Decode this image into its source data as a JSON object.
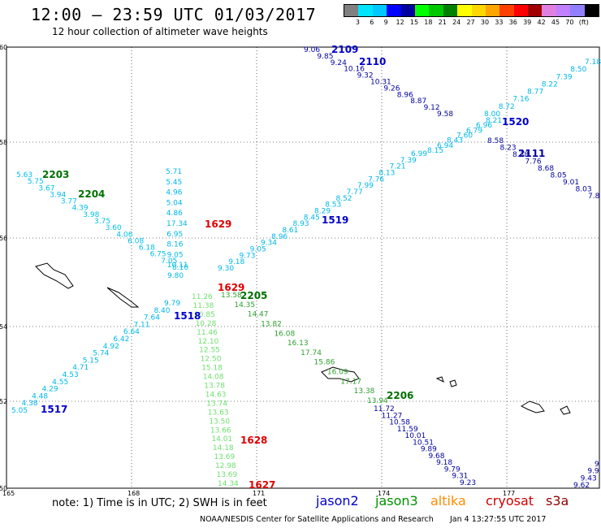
{
  "title": "12:00 – 23:59 UTC 01/03/2017",
  "subtitle": "12 hour collection of altimeter wave heights",
  "legend": {
    "colors": [
      "#808080",
      "#00e5ff",
      "#00c8ff",
      "#0000ff",
      "#0000a0",
      "#00ff00",
      "#00c800",
      "#008000",
      "#ffff00",
      "#ffd700",
      "#ffa500",
      "#ff4000",
      "#ff0000",
      "#a00000",
      "#e080e0",
      "#c080ff",
      "#9080ff",
      "#000000"
    ],
    "labels": [
      "3",
      "6",
      "9",
      "12",
      "15",
      "18",
      "21",
      "24",
      "27",
      "30",
      "33",
      "36",
      "39",
      "42",
      "45",
      "70",
      "(ft)"
    ]
  },
  "map": {
    "lon_ticks": [
      "165",
      "168",
      "171",
      "174",
      "177"
    ],
    "lat_ticks": [
      "50",
      "52",
      "54",
      "56",
      "58",
      "60"
    ]
  },
  "tracks": [
    {
      "id": "2109",
      "color": "#0000cc",
      "label_color": "#0000cc"
    },
    {
      "id": "2110",
      "color": "#0000cc",
      "label_color": "#0000cc"
    },
    {
      "id": "1520",
      "color": "#0000cc",
      "label_color": "#0000cc"
    },
    {
      "id": "2111",
      "color": "#0000a0",
      "label_color": "#0000a0"
    },
    {
      "id": "1519",
      "color": "#0000cc",
      "label_color": "#0000cc"
    },
    {
      "id": "2203",
      "color": "#007000",
      "label_color": "#007000"
    },
    {
      "id": "2204",
      "color": "#007000",
      "label_color": "#007000"
    },
    {
      "id": "1629",
      "color": "#e00000",
      "label_color": "#e00000"
    },
    {
      "id": "2205",
      "color": "#007000",
      "label_color": "#007000"
    },
    {
      "id": "1518",
      "color": "#0000cc",
      "label_color": "#0000cc"
    },
    {
      "id": "2206",
      "color": "#007000",
      "label_color": "#007000"
    },
    {
      "id": "1517",
      "color": "#0000cc",
      "label_color": "#0000cc"
    },
    {
      "id": "1628",
      "color": "#e00000",
      "label_color": "#e00000"
    },
    {
      "id": "1627",
      "color": "#e00000",
      "label_color": "#e00000"
    }
  ],
  "values": {
    "track_2109": [
      "9.06",
      "9.85",
      "9.24",
      "10.16",
      "9.32",
      "10.31",
      "9.26",
      "8.96",
      "8.87",
      "9.12",
      "9.58"
    ],
    "track_1520_ne": [
      "8.00",
      "8.72",
      "7.16",
      "8.77",
      "8.22",
      "7.39",
      "8.50",
      "7.18"
    ],
    "track_1520_mid": [
      "8.15",
      "6.94",
      "8.43",
      "7.60",
      "6.79",
      "6.96",
      "8.21"
    ],
    "track_2111": [
      "8.58",
      "8.23",
      "8.38",
      "7.76",
      "8.68",
      "8.05",
      "9.01",
      "8.03",
      "7.8"
    ],
    "track_1519": [
      "6.99",
      "7.39",
      "7.21",
      "8.13",
      "7.76",
      "7.99",
      "7.77",
      "8.52",
      "8.53",
      "8.29",
      "8.45",
      "8.93",
      "8.61",
      "8.96",
      "9.34",
      "9.05",
      "9.73",
      "9.18",
      "9.30"
    ],
    "track_2203": [
      "5.63",
      "5.75",
      "3.67",
      "3.94",
      "3.77",
      "4.39",
      "3.98",
      "3.75",
      "3.60",
      "4.06",
      "6.08",
      "6.18",
      "6.75",
      "7.05",
      "8.10"
    ],
    "track_1629_n": [
      "5.71",
      "5.45",
      "4.96",
      "5.04",
      "4.86",
      "17.34",
      "6.95",
      "8.16",
      "9.05",
      "10.11",
      "9.80"
    ],
    "track_1518": [
      "9.79",
      "8.40",
      "7.64",
      "7.11",
      "6.64",
      "6.42",
      "4.92",
      "5.74",
      "5.15",
      "4.71",
      "4.53",
      "4.55",
      "4.29",
      "4.48",
      "4.38",
      "5.05"
    ],
    "track_mid": [
      "11.26",
      "11.38",
      "10.85",
      "10.28",
      "11.46",
      "12.10",
      "12.55",
      "12.50",
      "15.18",
      "14.08",
      "13.78",
      "14.63",
      "13.74",
      "13.63",
      "13.50",
      "13.66",
      "14.01",
      "14.18",
      "13.69",
      "12.98",
      "13.69",
      "14.34"
    ],
    "track_2205": [
      "13.58",
      "14.35",
      "14.47",
      "13.82",
      "16.08",
      "16.13",
      "17.74",
      "15.86",
      "16.09",
      "17.17",
      "13.38",
      "13.94"
    ],
    "track_2206": [
      "11.72",
      "11.27",
      "10.58",
      "11.59",
      "10.01",
      "10.51",
      "9.89",
      "9.68",
      "9.18",
      "9.79",
      "9.31",
      "9.23"
    ],
    "track_se": [
      "9",
      "9.9",
      "9.43",
      "9.62"
    ]
  },
  "footer": {
    "note": "note:  1) Time is in UTC;  2) SWH is in feet",
    "satellites": [
      {
        "name": "jason2",
        "color": "#0000cc"
      },
      {
        "name": "jason3",
        "color": "#009000"
      },
      {
        "name": "altika",
        "color": "#ff8c00"
      },
      {
        "name": "cryosat",
        "color": "#d00000"
      },
      {
        "name": "s3a",
        "color": "#900000"
      }
    ],
    "credit": "NOAA/NESDIS Center for Satellite Applications and Research",
    "generated": "Jan  4 13:27:55 UTC 2017"
  }
}
